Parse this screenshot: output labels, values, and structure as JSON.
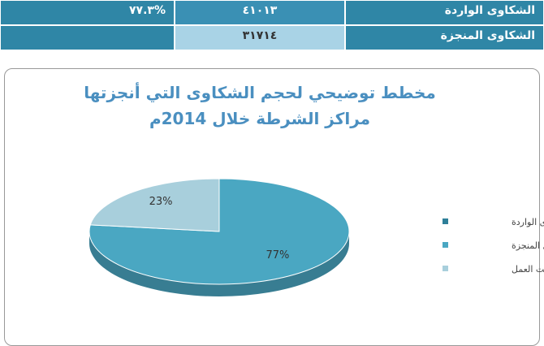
{
  "table": {
    "rows": [
      [
        "الشكاوى الواردة",
        "٤١٠١٣",
        "%٧٧.٣"
      ],
      [
        "الشكاوى المنجزة",
        "٣١٧١٤"
      ]
    ]
  },
  "chart_data": {
    "type": "pie",
    "title": "مخطط توضيحي  لحجم الشكاوى التي أنجزتها مراكز الشرطة  خلال 2014م",
    "categories": [
      "الشكاوى الواردة",
      "اشكاوى المنجزة",
      "تحت العمل"
    ],
    "values": [
      null,
      77,
      23
    ],
    "value_labels": [
      null,
      "77%",
      "23%"
    ],
    "colors": [
      "#2e7f99",
      "#4aa7c2",
      "#a8cfdc"
    ],
    "legend": "right"
  }
}
